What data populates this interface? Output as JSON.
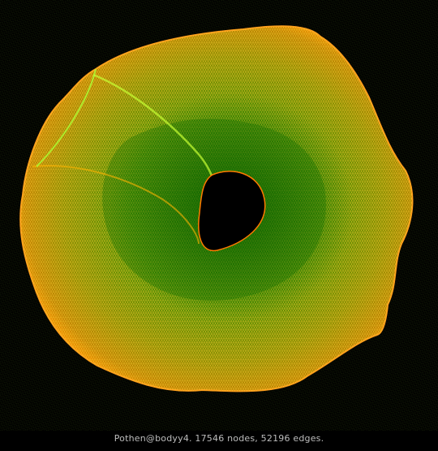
{
  "caption": "Pothen@bodyy4. 17546 nodes, 52196 edges.",
  "graph": {
    "name": "Pothen@bodyy4",
    "nodes": 17546,
    "edges": 52196,
    "shape": "torus-like triangulated mesh with a central hole",
    "colors": {
      "background": "#000000",
      "edge_outer": "#ff8a00",
      "edge_mid": "#c8a800",
      "edge_inner": "#2fa800",
      "edge_highlight": "#88ff00"
    }
  }
}
